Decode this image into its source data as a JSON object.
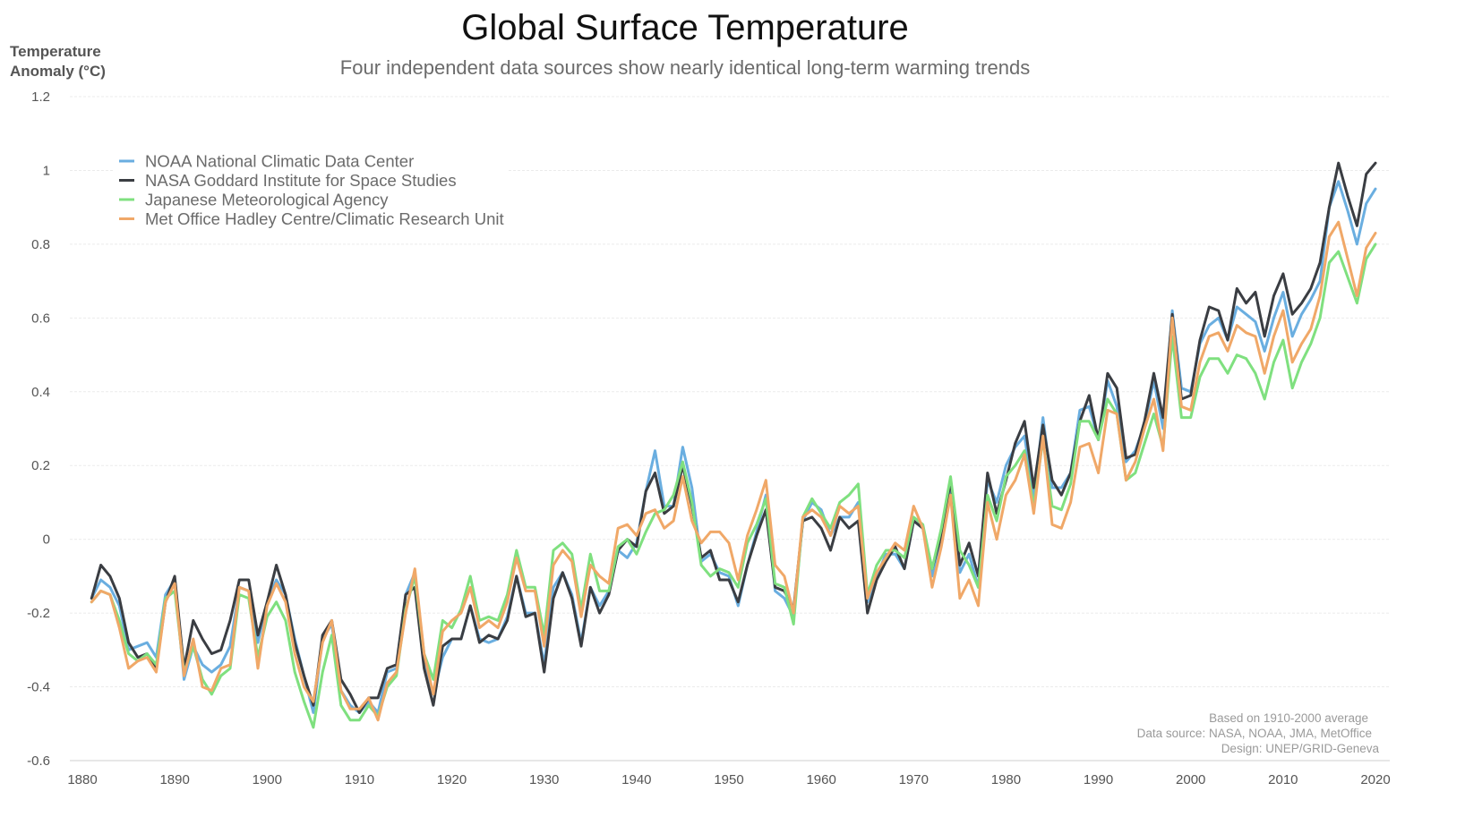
{
  "chart_data": {
    "type": "line",
    "title": "Global Surface Temperature",
    "subtitle": "Four independent data sources show nearly identical long-term warming trends",
    "ylabel": [
      "Temperature",
      "Anomaly (°C)"
    ],
    "xlabel": "",
    "xlim": [
      1880,
      2020
    ],
    "ylim": [
      -0.6,
      1.2
    ],
    "x_ticks": [
      1880,
      1890,
      1900,
      1910,
      1920,
      1930,
      1940,
      1950,
      1960,
      1970,
      1980,
      1990,
      2000,
      2010,
      2020
    ],
    "y_ticks": [
      1.2,
      1,
      0.8,
      0.6,
      0.4,
      0.2,
      0,
      -0.2,
      -0.4,
      -0.6
    ],
    "grid": true,
    "legend_position": "top-left",
    "notes": [
      "Based on 1910-2000 average",
      "Data source: NASA, NOAA, JMA, MetOffice",
      "Design: UNEP/GRID-Geneva"
    ],
    "x_start": 1881,
    "series": [
      {
        "name": "NOAA National Climatic Data Center",
        "color": "#6aaee0",
        "values": [
          -0.16,
          -0.11,
          -0.13,
          -0.18,
          -0.3,
          -0.29,
          -0.28,
          -0.32,
          -0.15,
          -0.11,
          -0.38,
          -0.29,
          -0.34,
          -0.36,
          -0.34,
          -0.29,
          -0.13,
          -0.14,
          -0.28,
          -0.17,
          -0.11,
          -0.15,
          -0.27,
          -0.37,
          -0.47,
          -0.27,
          -0.23,
          -0.41,
          -0.45,
          -0.47,
          -0.44,
          -0.47,
          -0.36,
          -0.35,
          -0.15,
          -0.09,
          -0.34,
          -0.42,
          -0.32,
          -0.27,
          -0.27,
          -0.18,
          -0.27,
          -0.28,
          -0.27,
          -0.21,
          -0.1,
          -0.2,
          -0.2,
          -0.34,
          -0.13,
          -0.09,
          -0.15,
          -0.28,
          -0.13,
          -0.18,
          -0.14,
          -0.03,
          -0.05,
          -0.01,
          0.13,
          0.24,
          0.09,
          0.09,
          0.25,
          0.14,
          -0.06,
          -0.04,
          -0.09,
          -0.1,
          -0.18,
          -0.07,
          0.02,
          0.12,
          -0.14,
          -0.16,
          -0.21,
          0.05,
          0.1,
          0.08,
          0.01,
          0.06,
          0.06,
          0.1,
          -0.17,
          -0.1,
          -0.04,
          -0.04,
          -0.08,
          0.05,
          0.03,
          -0.1,
          0.01,
          0.14,
          -0.09,
          -0.04,
          -0.13,
          0.16,
          0.1,
          0.2,
          0.25,
          0.28,
          0.11,
          0.33,
          0.14,
          0.14,
          0.18,
          0.35,
          0.36,
          0.27,
          0.43,
          0.36,
          0.21,
          0.24,
          0.31,
          0.43,
          0.3,
          0.62,
          0.41,
          0.4,
          0.53,
          0.58,
          0.6,
          0.54,
          0.63,
          0.61,
          0.59,
          0.51,
          0.6,
          0.67,
          0.55,
          0.61,
          0.65,
          0.7,
          0.9,
          0.97,
          0.89,
          0.8,
          0.91,
          0.95
        ]
      },
      {
        "name": "NASA Goddard Institute for Space Studies",
        "color": "#3a3d42",
        "values": [
          -0.16,
          -0.07,
          -0.1,
          -0.16,
          -0.28,
          -0.32,
          -0.31,
          -0.35,
          -0.17,
          -0.1,
          -0.35,
          -0.22,
          -0.27,
          -0.31,
          -0.3,
          -0.22,
          -0.11,
          -0.11,
          -0.26,
          -0.17,
          -0.07,
          -0.15,
          -0.28,
          -0.37,
          -0.45,
          -0.26,
          -0.22,
          -0.38,
          -0.42,
          -0.47,
          -0.43,
          -0.43,
          -0.35,
          -0.34,
          -0.15,
          -0.13,
          -0.35,
          -0.45,
          -0.29,
          -0.27,
          -0.27,
          -0.18,
          -0.28,
          -0.26,
          -0.27,
          -0.22,
          -0.1,
          -0.21,
          -0.2,
          -0.36,
          -0.16,
          -0.09,
          -0.16,
          -0.29,
          -0.13,
          -0.2,
          -0.15,
          -0.03,
          0.0,
          -0.02,
          0.13,
          0.18,
          0.07,
          0.09,
          0.2,
          0.09,
          -0.05,
          -0.03,
          -0.11,
          -0.11,
          -0.17,
          -0.07,
          0.01,
          0.08,
          -0.13,
          -0.14,
          -0.19,
          0.05,
          0.06,
          0.03,
          -0.03,
          0.06,
          0.03,
          0.05,
          -0.2,
          -0.11,
          -0.06,
          -0.02,
          -0.08,
          0.05,
          0.03,
          -0.08,
          0.01,
          0.16,
          -0.07,
          -0.01,
          -0.1,
          0.18,
          0.07,
          0.16,
          0.26,
          0.32,
          0.14,
          0.31,
          0.16,
          0.12,
          0.18,
          0.32,
          0.39,
          0.27,
          0.45,
          0.41,
          0.22,
          0.23,
          0.32,
          0.45,
          0.33,
          0.61,
          0.38,
          0.39,
          0.54,
          0.63,
          0.62,
          0.54,
          0.68,
          0.64,
          0.67,
          0.55,
          0.66,
          0.72,
          0.61,
          0.64,
          0.68,
          0.75,
          0.9,
          1.02,
          0.93,
          0.85,
          0.99,
          1.02
        ]
      },
      {
        "name": "Japanese Meteorological Agency",
        "color": "#7fe07f",
        "values": [
          -0.17,
          -0.14,
          -0.15,
          -0.22,
          -0.31,
          -0.33,
          -0.31,
          -0.34,
          -0.16,
          -0.14,
          -0.36,
          -0.29,
          -0.38,
          -0.42,
          -0.37,
          -0.35,
          -0.15,
          -0.16,
          -0.32,
          -0.21,
          -0.17,
          -0.22,
          -0.36,
          -0.44,
          -0.51,
          -0.36,
          -0.26,
          -0.45,
          -0.49,
          -0.49,
          -0.45,
          -0.48,
          -0.4,
          -0.37,
          -0.19,
          -0.1,
          -0.31,
          -0.38,
          -0.22,
          -0.24,
          -0.19,
          -0.1,
          -0.22,
          -0.21,
          -0.22,
          -0.15,
          -0.03,
          -0.13,
          -0.13,
          -0.26,
          -0.03,
          -0.01,
          -0.04,
          -0.19,
          -0.04,
          -0.14,
          -0.14,
          -0.02,
          0.0,
          -0.04,
          0.02,
          0.07,
          0.08,
          0.12,
          0.21,
          0.1,
          -0.07,
          -0.1,
          -0.08,
          -0.09,
          -0.13,
          -0.01,
          0.04,
          0.11,
          -0.12,
          -0.13,
          -0.23,
          0.06,
          0.11,
          0.07,
          0.03,
          0.1,
          0.12,
          0.15,
          -0.15,
          -0.07,
          -0.03,
          -0.03,
          -0.05,
          0.06,
          0.04,
          -0.08,
          0.03,
          0.17,
          -0.03,
          -0.07,
          -0.13,
          0.12,
          0.05,
          0.17,
          0.2,
          0.24,
          0.09,
          0.27,
          0.09,
          0.08,
          0.15,
          0.32,
          0.32,
          0.27,
          0.38,
          0.34,
          0.16,
          0.18,
          0.26,
          0.34,
          0.25,
          0.55,
          0.33,
          0.33,
          0.44,
          0.49,
          0.49,
          0.45,
          0.5,
          0.49,
          0.45,
          0.38,
          0.48,
          0.54,
          0.41,
          0.48,
          0.53,
          0.6,
          0.75,
          0.78,
          0.71,
          0.64,
          0.76,
          0.8
        ]
      },
      {
        "name": "Met Office Hadley Centre/Climatic Research Unit",
        "color": "#f0a868",
        "values": [
          -0.17,
          -0.14,
          -0.15,
          -0.24,
          -0.35,
          -0.33,
          -0.32,
          -0.36,
          -0.17,
          -0.12,
          -0.37,
          -0.27,
          -0.4,
          -0.41,
          -0.35,
          -0.34,
          -0.13,
          -0.14,
          -0.35,
          -0.18,
          -0.12,
          -0.17,
          -0.31,
          -0.4,
          -0.44,
          -0.28,
          -0.22,
          -0.41,
          -0.46,
          -0.46,
          -0.43,
          -0.49,
          -0.39,
          -0.36,
          -0.2,
          -0.08,
          -0.31,
          -0.42,
          -0.25,
          -0.22,
          -0.2,
          -0.13,
          -0.24,
          -0.22,
          -0.24,
          -0.17,
          -0.05,
          -0.14,
          -0.14,
          -0.29,
          -0.07,
          -0.03,
          -0.06,
          -0.21,
          -0.07,
          -0.1,
          -0.12,
          0.03,
          0.04,
          0.01,
          0.07,
          0.08,
          0.03,
          0.05,
          0.17,
          0.05,
          -0.01,
          0.02,
          0.02,
          -0.01,
          -0.11,
          0.01,
          0.08,
          0.16,
          -0.07,
          -0.1,
          -0.2,
          0.06,
          0.08,
          0.06,
          0.01,
          0.09,
          0.07,
          0.09,
          -0.16,
          -0.09,
          -0.05,
          -0.01,
          -0.03,
          0.09,
          0.03,
          -0.13,
          -0.02,
          0.12,
          -0.16,
          -0.11,
          -0.18,
          0.1,
          0.0,
          0.12,
          0.16,
          0.23,
          0.07,
          0.28,
          0.04,
          0.03,
          0.1,
          0.25,
          0.26,
          0.18,
          0.35,
          0.34,
          0.16,
          0.21,
          0.3,
          0.38,
          0.24,
          0.6,
          0.36,
          0.35,
          0.48,
          0.55,
          0.56,
          0.51,
          0.58,
          0.56,
          0.55,
          0.45,
          0.55,
          0.62,
          0.48,
          0.53,
          0.57,
          0.66,
          0.82,
          0.86,
          0.76,
          0.66,
          0.79,
          0.83
        ]
      }
    ]
  }
}
